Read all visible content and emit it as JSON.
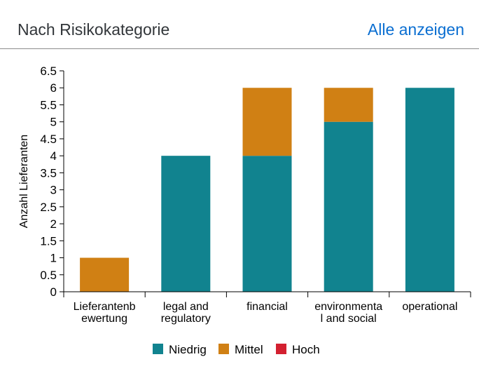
{
  "header": {
    "title": "Nach Risikokategorie",
    "link_label": "Alle anzeigen"
  },
  "colors": {
    "Niedrig": "#11838f",
    "Mittel": "#d08014",
    "Hoch": "#d32030",
    "link": "#0a6ed1"
  },
  "chart_data": {
    "type": "bar",
    "stacked": true,
    "categories": [
      [
        "Lieferantenb",
        "ewertung"
      ],
      [
        "legal and",
        "regulatory"
      ],
      [
        "financial"
      ],
      [
        "environmenta",
        "l and social"
      ],
      [
        "operational"
      ]
    ],
    "series": [
      {
        "name": "Niedrig",
        "values": [
          0,
          4,
          4,
          5,
          6
        ]
      },
      {
        "name": "Mittel",
        "values": [
          1,
          0,
          2,
          1,
          0
        ]
      },
      {
        "name": "Hoch",
        "values": [
          0,
          0,
          0,
          0,
          0
        ]
      }
    ],
    "ylabel": "Anzahl Lieferanten",
    "ylim": [
      0,
      6.5
    ],
    "yticks": [
      "0",
      "0.5",
      "1",
      "1.5",
      "2",
      "2.5",
      "3",
      "3.5",
      "4",
      "4.5",
      "5",
      "5.5",
      "6",
      "6.5"
    ],
    "legend_position": "bottom",
    "grid": false
  }
}
